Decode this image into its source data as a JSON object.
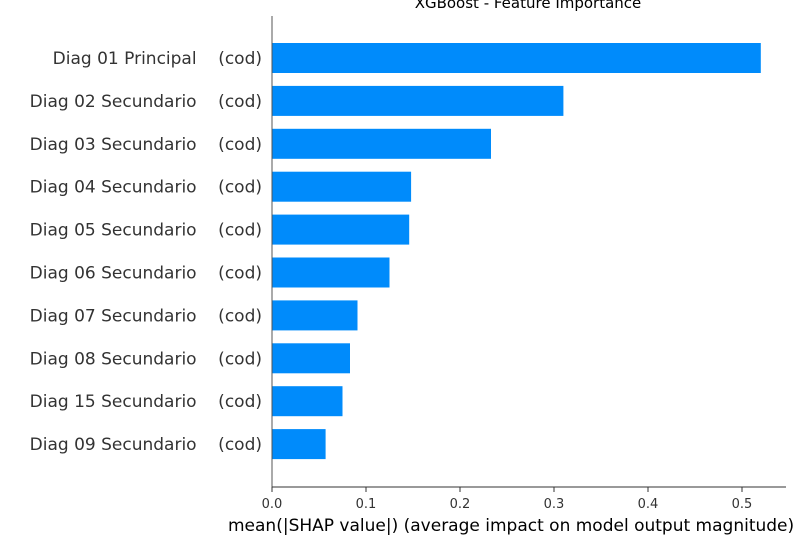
{
  "chart_data": {
    "type": "bar",
    "orientation": "horizontal",
    "title": "XGBoost - Feature Importance",
    "xlabel": "mean(|SHAP value|) (average impact on model output magnitude)",
    "ylabel": "",
    "categories": [
      "Diag 01 Principal    (cod)",
      "Diag 02 Secundario    (cod)",
      "Diag 03 Secundario    (cod)",
      "Diag 04 Secundario    (cod)",
      "Diag 05 Secundario    (cod)",
      "Diag 06 Secundario    (cod)",
      "Diag 07 Secundario    (cod)",
      "Diag 08 Secundario    (cod)",
      "Diag 15 Secundario    (cod)",
      "Diag 09 Secundario    (cod)"
    ],
    "values": [
      0.52,
      0.31,
      0.233,
      0.148,
      0.146,
      0.125,
      0.091,
      0.083,
      0.075,
      0.057
    ],
    "xlim": [
      0,
      0.545
    ],
    "xticks": [
      0.0,
      0.1,
      0.2,
      0.3,
      0.4,
      0.5
    ],
    "xtick_labels": [
      "0.0",
      "0.1",
      "0.2",
      "0.3",
      "0.4",
      "0.5"
    ],
    "bar_color": "#008bfb",
    "grid": false
  }
}
